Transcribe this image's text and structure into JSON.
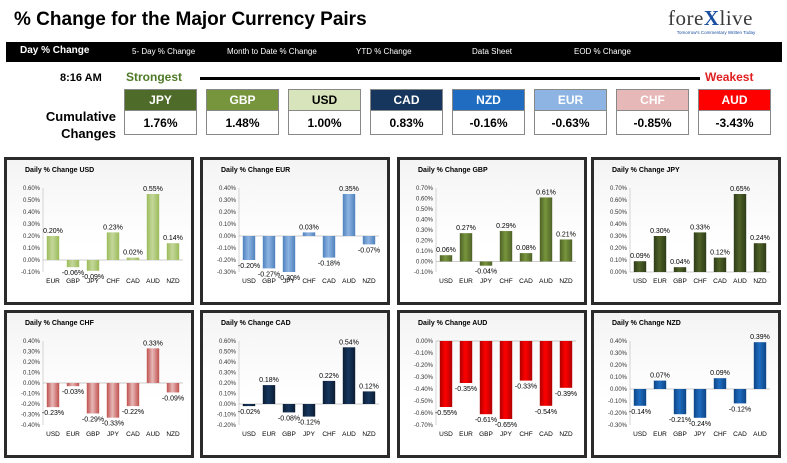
{
  "header": {
    "title": "% Change for the Major Currency Pairs"
  },
  "logo": {
    "brand_prefix": "fore",
    "brand_x": "X",
    "brand_suffix": "live",
    "tagline": "Tomorrow's Commentary Written Today"
  },
  "nav": [
    "Day % Change",
    "5- Day % Change",
    "Month to Date % Change",
    "YTD % Change",
    "Data Sheet",
    "EOD % Change"
  ],
  "summary": {
    "time": "8:16 AM",
    "strongest_label": "Strongest",
    "weakest_label": "Weakest",
    "cumulative_label_1": "Cumulative",
    "cumulative_label_2": "Changes",
    "currencies": [
      {
        "code": "JPY",
        "value": "1.76%",
        "bg": "#4f6b2a",
        "fg": "#ffffff"
      },
      {
        "code": "GBP",
        "value": "1.48%",
        "bg": "#77953d",
        "fg": "#ffffff"
      },
      {
        "code": "USD",
        "value": "1.00%",
        "bg": "#d8e4bc",
        "fg": "#000000"
      },
      {
        "code": "CAD",
        "value": "0.83%",
        "bg": "#17365d",
        "fg": "#ffffff"
      },
      {
        "code": "NZD",
        "value": "-0.16%",
        "bg": "#1f6cc0",
        "fg": "#ffffff"
      },
      {
        "code": "EUR",
        "value": "-0.63%",
        "bg": "#8db4e2",
        "fg": "#ffffff"
      },
      {
        "code": "CHF",
        "value": "-0.85%",
        "bg": "#e6b8b7",
        "fg": "#ffffff"
      },
      {
        "code": "AUD",
        "value": "-3.43%",
        "bg": "#ff0000",
        "fg": "#ffffff"
      }
    ]
  },
  "chart_data": [
    {
      "type": "bar",
      "title": "Daily % Change USD",
      "color": "#c4d79b",
      "dark": "#9bbb59",
      "categories": [
        "EUR",
        "GBP",
        "JPY",
        "CHF",
        "CAD",
        "AUD",
        "NZD"
      ],
      "values": [
        0.2,
        -0.06,
        -0.09,
        0.23,
        0.02,
        0.55,
        0.14
      ],
      "labels": [
        "0.20%",
        "-0.06%",
        "-0.09%",
        "0.23%",
        "0.02%",
        "0.55%",
        "0.14%"
      ],
      "ylim": [
        -0.1,
        0.6
      ],
      "ticks": [
        "0.60%",
        "0.50%",
        "0.40%",
        "0.30%",
        "0.20%",
        "0.10%",
        "0.00%",
        "-0.10%"
      ]
    },
    {
      "type": "bar",
      "title": "Daily % Change EUR",
      "color": "#8db4e2",
      "dark": "#4f81bd",
      "categories": [
        "USD",
        "GBP",
        "JPY",
        "CHF",
        "CAD",
        "AUD",
        "NZD"
      ],
      "values": [
        -0.2,
        -0.27,
        -0.3,
        0.03,
        -0.18,
        0.35,
        -0.07
      ],
      "labels": [
        "-0.20%",
        "-0.27%",
        "-0.30%",
        "0.03%",
        "-0.18%",
        "0.35%",
        "-0.07%"
      ],
      "ylim": [
        -0.3,
        0.4
      ],
      "ticks": [
        "0.40%",
        "0.30%",
        "0.20%",
        "0.10%",
        "0.00%",
        "-0.10%",
        "-0.20%",
        "-0.30%"
      ]
    },
    {
      "type": "bar",
      "title": "Daily % Change GBP",
      "color": "#77953d",
      "dark": "#4f6228",
      "categories": [
        "USD",
        "EUR",
        "JPY",
        "CHF",
        "CAD",
        "AUD",
        "NZD"
      ],
      "values": [
        0.06,
        0.27,
        -0.04,
        0.29,
        0.08,
        0.61,
        0.21
      ],
      "labels": [
        "0.06%",
        "0.27%",
        "-0.04%",
        "0.29%",
        "0.08%",
        "0.61%",
        "0.21%"
      ],
      "ylim": [
        -0.1,
        0.7
      ],
      "ticks": [
        "0.70%",
        "0.60%",
        "0.50%",
        "0.40%",
        "0.30%",
        "0.20%",
        "0.10%",
        "0.00%",
        "-0.10%"
      ]
    },
    {
      "type": "bar",
      "title": "Daily % Change JPY",
      "color": "#4f6228",
      "dark": "#2f3b18",
      "categories": [
        "USD",
        "EUR",
        "GBP",
        "CHF",
        "CAD",
        "AUD",
        "NZD"
      ],
      "values": [
        0.09,
        0.3,
        0.04,
        0.33,
        0.12,
        0.65,
        0.24
      ],
      "labels": [
        "0.09%",
        "0.30%",
        "0.04%",
        "0.33%",
        "0.12%",
        "0.65%",
        "0.24%"
      ],
      "ylim": [
        0.0,
        0.7
      ],
      "ticks": [
        "0.70%",
        "0.60%",
        "0.50%",
        "0.40%",
        "0.30%",
        "0.20%",
        "0.10%",
        "0.00%"
      ]
    },
    {
      "type": "bar",
      "title": "Daily % Change CHF",
      "color": "#e6b8b7",
      "dark": "#c0504d",
      "categories": [
        "USD",
        "EUR",
        "GBP",
        "JPY",
        "CAD",
        "AUD",
        "NZD"
      ],
      "values": [
        -0.23,
        -0.03,
        -0.29,
        -0.33,
        -0.22,
        0.33,
        -0.09
      ],
      "labels": [
        "-0.23%",
        "-0.03%",
        "-0.29%",
        "-0.33%",
        "-0.22%",
        "0.33%",
        "-0.09%"
      ],
      "ylim": [
        -0.4,
        0.4
      ],
      "ticks": [
        "0.40%",
        "0.30%",
        "0.20%",
        "0.10%",
        "0.00%",
        "-0.10%",
        "-0.20%",
        "-0.30%",
        "-0.40%"
      ]
    },
    {
      "type": "bar",
      "title": "Daily % Change CAD",
      "color": "#17365d",
      "dark": "#0c1d33",
      "categories": [
        "USD",
        "EUR",
        "GBP",
        "JPY",
        "CHF",
        "AUD",
        "NZD"
      ],
      "values": [
        -0.02,
        0.18,
        -0.08,
        -0.12,
        0.22,
        0.54,
        0.12
      ],
      "labels": [
        "-0.02%",
        "0.18%",
        "-0.08%",
        "-0.12%",
        "0.22%",
        "0.54%",
        "0.12%"
      ],
      "ylim": [
        -0.2,
        0.6
      ],
      "ticks": [
        "0.60%",
        "0.50%",
        "0.40%",
        "0.30%",
        "0.20%",
        "0.10%",
        "0.00%",
        "-0.10%",
        "-0.20%"
      ]
    },
    {
      "type": "bar",
      "title": "Daily % Change AUD",
      "color": "#ff0000",
      "dark": "#b00000",
      "categories": [
        "USD",
        "EUR",
        "GBP",
        "JPY",
        "CHF",
        "CAD",
        "NZD"
      ],
      "values": [
        -0.55,
        -0.35,
        -0.61,
        -0.65,
        -0.33,
        -0.54,
        -0.39
      ],
      "labels": [
        "-0.55%",
        "-0.35%",
        "-0.61%",
        "-0.65%",
        "-0.33%",
        "-0.54%",
        "-0.39%"
      ],
      "ylim": [
        -0.7,
        0.0
      ],
      "ticks": [
        "0.00%",
        "-0.10%",
        "-0.20%",
        "-0.30%",
        "-0.40%",
        "-0.50%",
        "-0.60%",
        "-0.70%"
      ]
    },
    {
      "type": "bar",
      "title": "Daily % Change NZD",
      "color": "#1f6cc0",
      "dark": "#0d4585",
      "categories": [
        "USD",
        "EUR",
        "GBP",
        "JPY",
        "CHF",
        "CAD",
        "AUD"
      ],
      "values": [
        -0.14,
        0.07,
        -0.21,
        -0.24,
        0.09,
        -0.12,
        0.39
      ],
      "labels": [
        "-0.14%",
        "0.07%",
        "-0.21%",
        "-0.24%",
        "0.09%",
        "-0.12%",
        "0.39%"
      ],
      "ylim": [
        -0.3,
        0.4
      ],
      "ticks": [
        "0.40%",
        "0.30%",
        "0.20%",
        "0.10%",
        "0.00%",
        "-0.10%",
        "-0.20%",
        "-0.30%"
      ]
    }
  ]
}
